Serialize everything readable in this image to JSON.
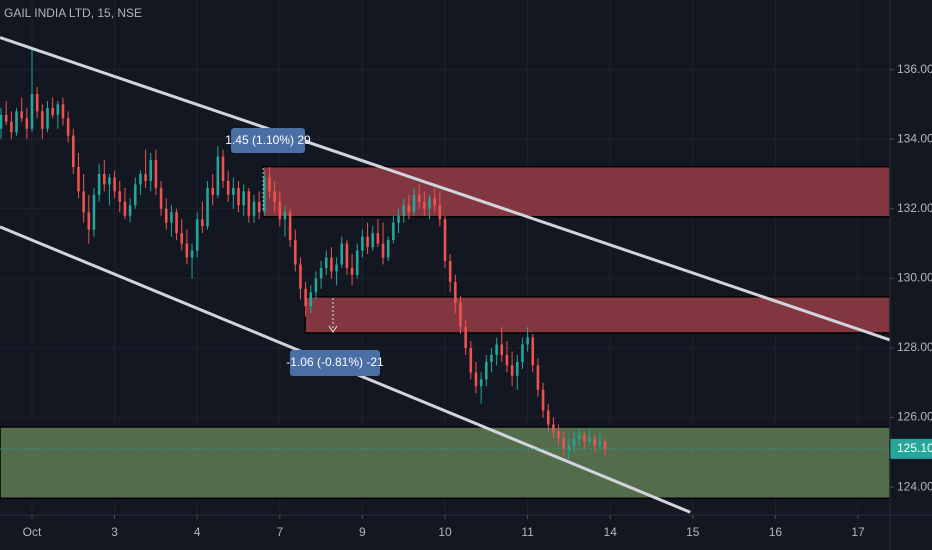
{
  "chart_data": {
    "type": "candlestick",
    "title": "GAIL INDIA LTD, 15, NSE",
    "ohlc": [
      [
        134.3,
        134.9,
        134.0,
        134.7
      ],
      [
        134.7,
        135.1,
        134.4,
        134.5
      ],
      [
        134.5,
        134.8,
        134.0,
        134.2
      ],
      [
        134.2,
        134.9,
        134.1,
        134.8
      ],
      [
        134.8,
        135.2,
        134.5,
        134.6
      ],
      [
        134.6,
        134.9,
        134.0,
        134.3
      ],
      [
        134.3,
        136.6,
        134.2,
        135.3
      ],
      [
        135.3,
        135.5,
        134.6,
        134.8
      ],
      [
        134.8,
        135.0,
        134.0,
        134.3
      ],
      [
        134.3,
        135.1,
        134.2,
        134.9
      ],
      [
        134.9,
        135.2,
        134.6,
        134.7
      ],
      [
        134.7,
        135.1,
        134.3,
        135.0
      ],
      [
        135.0,
        135.2,
        134.4,
        134.6
      ],
      [
        134.6,
        134.8,
        133.9,
        134.1
      ],
      [
        134.1,
        134.3,
        133.0,
        133.2
      ],
      [
        133.2,
        133.6,
        132.3,
        132.5
      ],
      [
        132.5,
        133.0,
        131.6,
        131.9
      ],
      [
        131.9,
        132.4,
        131.0,
        131.4
      ],
      [
        131.4,
        132.6,
        131.2,
        132.4
      ],
      [
        132.4,
        133.3,
        132.2,
        133.0
      ],
      [
        133.0,
        133.4,
        132.5,
        132.7
      ],
      [
        132.7,
        133.0,
        132.1,
        132.9
      ],
      [
        132.9,
        133.1,
        132.3,
        132.5
      ],
      [
        132.5,
        132.8,
        131.9,
        132.2
      ],
      [
        132.2,
        132.6,
        131.7,
        131.8
      ],
      [
        131.8,
        132.3,
        131.6,
        132.1
      ],
      [
        132.1,
        132.9,
        132.0,
        132.7
      ],
      [
        132.7,
        133.1,
        132.4,
        133.0
      ],
      [
        133.0,
        133.7,
        132.6,
        132.8
      ],
      [
        132.8,
        133.6,
        132.5,
        133.4
      ],
      [
        133.4,
        133.7,
        132.4,
        132.6
      ],
      [
        132.6,
        132.8,
        131.8,
        132.0
      ],
      [
        132.0,
        132.3,
        131.4,
        131.6
      ],
      [
        131.6,
        132.1,
        131.2,
        131.9
      ],
      [
        131.9,
        132.0,
        131.1,
        131.3
      ],
      [
        131.3,
        131.7,
        130.8,
        131.0
      ],
      [
        131.0,
        131.4,
        130.4,
        130.6
      ],
      [
        130.6,
        131.0,
        130.0,
        130.8
      ],
      [
        130.8,
        131.9,
        130.6,
        131.7
      ],
      [
        131.7,
        132.2,
        131.3,
        131.5
      ],
      [
        131.5,
        132.8,
        131.4,
        132.6
      ],
      [
        132.6,
        133.0,
        132.1,
        132.4
      ],
      [
        132.4,
        133.8,
        132.3,
        133.5
      ],
      [
        133.5,
        133.7,
        132.6,
        132.8
      ],
      [
        132.8,
        133.1,
        132.2,
        132.4
      ],
      [
        132.4,
        132.9,
        132.0,
        132.6
      ],
      [
        132.6,
        132.8,
        131.9,
        132.1
      ],
      [
        132.1,
        132.7,
        131.8,
        132.5
      ],
      [
        132.5,
        132.6,
        131.6,
        131.8
      ],
      [
        131.8,
        132.4,
        131.6,
        132.2
      ],
      [
        132.2,
        132.5,
        131.7,
        131.9
      ],
      [
        131.9,
        133.1,
        131.8,
        132.9
      ],
      [
        132.9,
        133.2,
        132.3,
        132.5
      ],
      [
        132.5,
        132.8,
        131.9,
        132.2
      ],
      [
        132.2,
        132.5,
        131.5,
        131.7
      ],
      [
        131.7,
        132.1,
        131.2,
        131.9
      ],
      [
        131.9,
        132.0,
        130.9,
        131.1
      ],
      [
        131.1,
        131.4,
        130.2,
        130.4
      ],
      [
        130.4,
        130.6,
        129.4,
        129.7
      ],
      [
        129.7,
        129.9,
        128.9,
        129.2
      ],
      [
        129.2,
        129.8,
        129.0,
        129.6
      ],
      [
        129.6,
        130.2,
        129.4,
        130.0
      ],
      [
        130.0,
        130.5,
        129.7,
        130.3
      ],
      [
        130.3,
        130.8,
        130.1,
        130.6
      ],
      [
        130.6,
        130.9,
        130.0,
        130.2
      ],
      [
        130.2,
        130.6,
        129.8,
        130.4
      ],
      [
        130.4,
        131.2,
        130.3,
        131.0
      ],
      [
        131.0,
        131.1,
        130.1,
        130.3
      ],
      [
        130.3,
        130.7,
        129.8,
        130.1
      ],
      [
        130.1,
        131.0,
        130.0,
        130.8
      ],
      [
        130.8,
        131.4,
        130.6,
        131.2
      ],
      [
        131.2,
        131.6,
        130.7,
        130.9
      ],
      [
        130.9,
        131.5,
        130.8,
        131.3
      ],
      [
        131.3,
        131.7,
        130.9,
        131.0
      ],
      [
        131.0,
        131.6,
        130.4,
        130.6
      ],
      [
        130.6,
        131.2,
        130.5,
        131.1
      ],
      [
        131.1,
        131.8,
        131.0,
        131.6
      ],
      [
        131.6,
        132.0,
        131.3,
        131.8
      ],
      [
        131.8,
        132.3,
        131.6,
        132.1
      ],
      [
        132.1,
        132.4,
        131.7,
        131.9
      ],
      [
        131.9,
        132.6,
        131.8,
        132.4
      ],
      [
        132.4,
        132.7,
        132.0,
        132.2
      ],
      [
        132.2,
        132.5,
        131.8,
        132.0
      ],
      [
        132.0,
        132.4,
        131.7,
        132.3
      ],
      [
        132.3,
        132.6,
        131.9,
        132.1
      ],
      [
        132.1,
        132.5,
        131.5,
        131.7
      ],
      [
        131.7,
        131.8,
        130.3,
        130.5
      ],
      [
        130.5,
        130.7,
        129.6,
        129.9
      ],
      [
        129.9,
        130.1,
        129.0,
        129.3
      ],
      [
        129.3,
        129.5,
        128.4,
        128.6
      ],
      [
        128.6,
        128.8,
        127.8,
        128.0
      ],
      [
        128.0,
        128.2,
        127.1,
        127.3
      ],
      [
        127.3,
        127.6,
        126.7,
        126.9
      ],
      [
        126.9,
        127.3,
        126.4,
        127.1
      ],
      [
        127.1,
        127.8,
        126.9,
        127.6
      ],
      [
        127.6,
        128.0,
        127.3,
        127.8
      ],
      [
        127.8,
        128.3,
        127.5,
        128.1
      ],
      [
        128.1,
        128.6,
        127.6,
        127.8
      ],
      [
        127.8,
        128.2,
        127.3,
        127.5
      ],
      [
        127.5,
        127.9,
        126.9,
        127.2
      ],
      [
        127.2,
        127.8,
        126.8,
        127.6
      ],
      [
        127.6,
        128.3,
        127.4,
        128.1
      ],
      [
        128.1,
        128.6,
        127.9,
        128.3
      ],
      [
        128.3,
        128.4,
        127.3,
        127.5
      ],
      [
        127.5,
        127.7,
        126.6,
        126.8
      ],
      [
        126.8,
        127.0,
        126.0,
        126.2
      ],
      [
        126.2,
        126.4,
        125.6,
        125.8
      ],
      [
        125.8,
        126.0,
        125.4,
        125.6
      ],
      [
        125.6,
        125.8,
        125.2,
        125.4
      ],
      [
        125.4,
        125.6,
        124.9,
        125.1
      ],
      [
        125.1,
        125.4,
        124.8,
        125.2
      ],
      [
        125.2,
        125.6,
        125.0,
        125.4
      ],
      [
        125.4,
        125.7,
        125.2,
        125.5
      ],
      [
        125.5,
        125.6,
        125.1,
        125.3
      ],
      [
        125.3,
        125.7,
        125.2,
        125.4
      ],
      [
        125.4,
        125.5,
        125.0,
        125.2
      ],
      [
        125.2,
        125.6,
        125.1,
        125.3
      ],
      [
        125.3,
        125.4,
        124.9,
        125.1
      ]
    ],
    "up_color": "#26a69a",
    "down_color": "#ef5350",
    "xlim": [
      -0.2,
      172.2
    ],
    "xticks": [
      {
        "value": 6,
        "label": "Oct"
      },
      {
        "value": 22,
        "label": "3"
      },
      {
        "value": 38,
        "label": "4"
      },
      {
        "value": 54,
        "label": "7"
      },
      {
        "value": 70,
        "label": "9"
      },
      {
        "value": 86,
        "label": "10"
      },
      {
        "value": 102,
        "label": "11"
      },
      {
        "value": 118,
        "label": "14"
      },
      {
        "value": 134,
        "label": "15"
      },
      {
        "value": 150,
        "label": "16"
      },
      {
        "value": 166,
        "label": "17"
      }
    ],
    "ylim": [
      123.2,
      138.0
    ],
    "yticks": [
      {
        "value": 124,
        "label": "124.00"
      },
      {
        "value": 126,
        "label": "126.00"
      },
      {
        "value": 128,
        "label": "128.00"
      },
      {
        "value": 130,
        "label": "130.00"
      },
      {
        "value": 132,
        "label": "132.00"
      },
      {
        "value": 134,
        "label": "134.00"
      },
      {
        "value": 136,
        "label": "136.00"
      }
    ],
    "grid": true,
    "last_price": {
      "value": 125.1,
      "label": "125.10"
    },
    "zones": [
      {
        "x": [
          50.7,
          172.2
        ],
        "low": 131.77,
        "high": 133.21,
        "color": "#a8424a"
      },
      {
        "x": [
          58.9,
          172.2
        ],
        "low": 128.43,
        "high": 129.47,
        "color": "#a8424a"
      },
      {
        "x": [
          -0.2,
          172.2
        ],
        "low": 123.68,
        "high": 125.73,
        "color": "#6a8a5a"
      }
    ],
    "trendlines": [
      [
        [
          -0.2,
          136.92
        ],
        [
          172.2,
          128.23
        ]
      ],
      [
        [
          -0.2,
          131.48
        ],
        [
          133.5,
          123.28
        ]
      ]
    ],
    "annotations": [
      "1.45 (1.10%) 29",
      "-1.06 (-0.81%) -21"
    ]
  }
}
